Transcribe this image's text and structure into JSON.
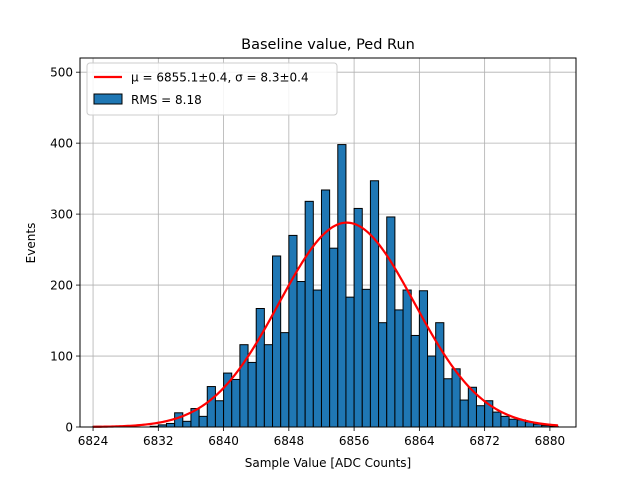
{
  "chart_data": {
    "type": "bar",
    "title": "Baseline value, Ped Run",
    "xlabel": "Sample Value [ADC Counts]",
    "ylabel": "Events",
    "xlim": [
      6822.4,
      6883.2
    ],
    "ylim": [
      0,
      520
    ],
    "grid": true,
    "legend_position": "upper-left",
    "xticks": [
      6824,
      6832,
      6840,
      6848,
      6856,
      6864,
      6872,
      6880
    ],
    "xtick_labels": [
      "6824",
      "6832",
      "6840",
      "6848",
      "6856",
      "6864",
      "6872",
      "6880"
    ],
    "yticks": [
      0,
      100,
      200,
      300,
      400,
      500
    ],
    "ytick_labels": [
      "0",
      "100",
      "200",
      "300",
      "400",
      "500"
    ],
    "series": [
      {
        "name": "RMS = 8.18",
        "kind": "histogram",
        "color": "#1f77b4",
        "edgecolor": "#000000",
        "bin_width": 1,
        "bin_left_edges": [
          6824,
          6825,
          6826,
          6827,
          6828,
          6829,
          6830,
          6831,
          6832,
          6833,
          6834,
          6835,
          6836,
          6837,
          6838,
          6839,
          6840,
          6841,
          6842,
          6843,
          6844,
          6845,
          6846,
          6847,
          6848,
          6849,
          6850,
          6851,
          6852,
          6853,
          6854,
          6855,
          6856,
          6857,
          6858,
          6859,
          6860,
          6861,
          6862,
          6863,
          6864,
          6865,
          6866,
          6867,
          6868,
          6869,
          6870,
          6871,
          6872,
          6873,
          6874,
          6875,
          6876,
          6877,
          6878,
          6879,
          6880
        ],
        "values": [
          1,
          0,
          0,
          0,
          0,
          0,
          0,
          1,
          3,
          5,
          20,
          8,
          26,
          15,
          57,
          37,
          76,
          67,
          116,
          91,
          167,
          116,
          241,
          133,
          270,
          205,
          318,
          193,
          334,
          252,
          398,
          183,
          308,
          194,
          347,
          147,
          296,
          165,
          193,
          129,
          192,
          100,
          147,
          68,
          82,
          38,
          56,
          30,
          37,
          21,
          15,
          11,
          10,
          7,
          4,
          2,
          1
        ]
      },
      {
        "name": "μ = 6855.1±0.4, σ = 8.3±0.4",
        "kind": "gaussian-fit",
        "color": "#ff0000",
        "mu": 6855.1,
        "sigma": 8.3,
        "amplitude": 288,
        "x_range": [
          6824,
          6881
        ]
      }
    ]
  }
}
